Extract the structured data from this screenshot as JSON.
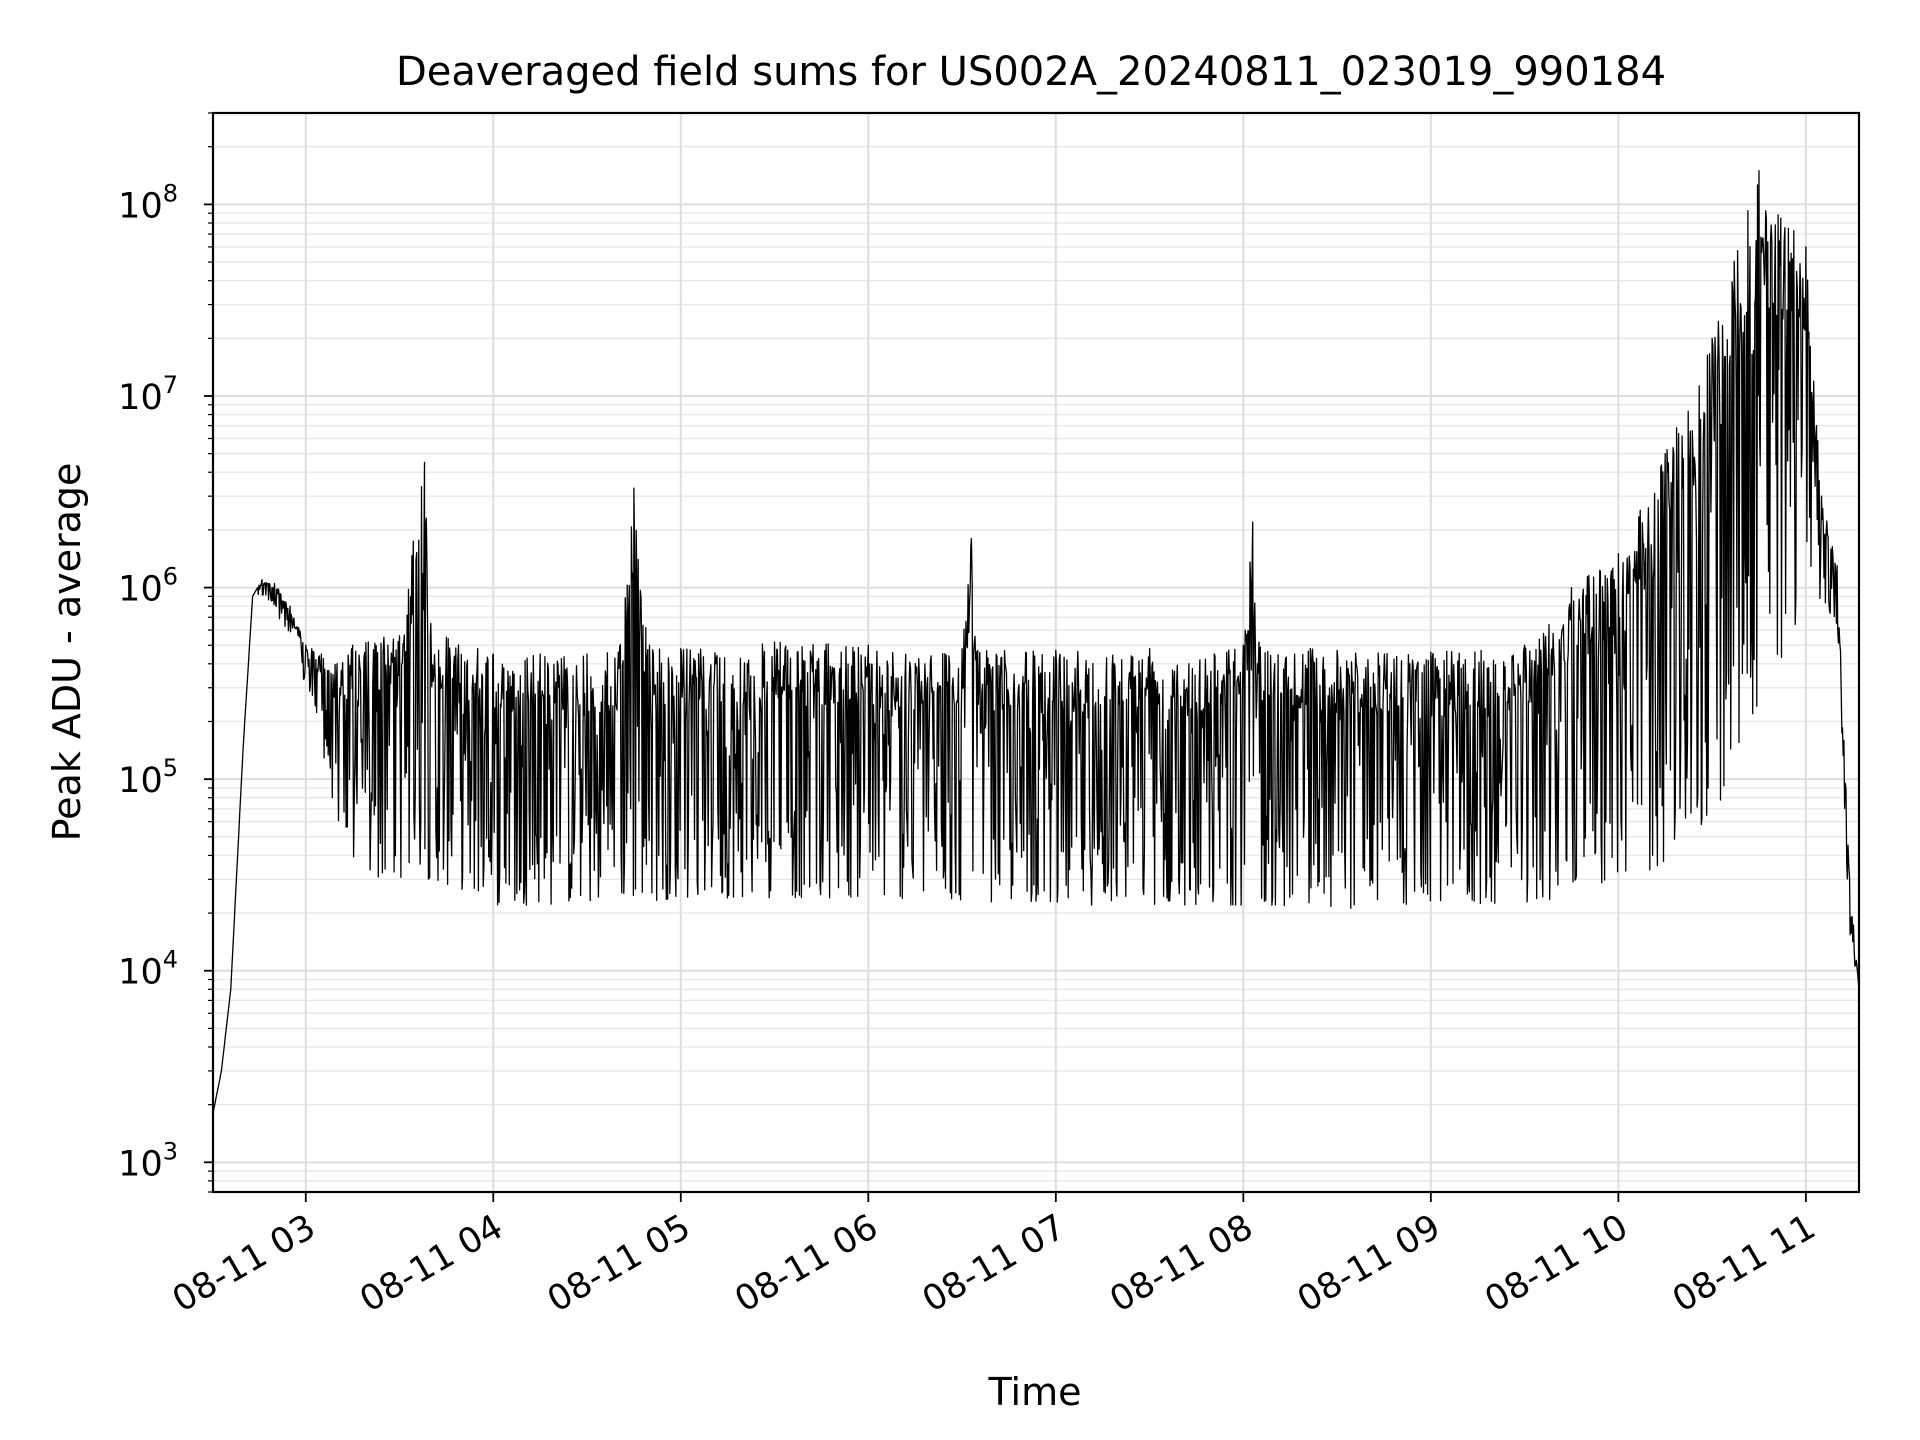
{
  "chart_data": {
    "type": "line",
    "title": "Deaveraged field sums for US002A_20240811_023019_990184",
    "xlabel": "Time",
    "ylabel": "Peak ADU - average",
    "x_scale": "time",
    "y_scale": "log",
    "x_range": [
      "2024-08-11 02:30:19",
      "2024-08-11 11:17:00"
    ],
    "ylim": [
      700,
      300000000
    ],
    "grid": true,
    "x_tick_labels": [
      "08-11 03",
      "08-11 04",
      "08-11 05",
      "08-11 06",
      "08-11 07",
      "08-11 08",
      "08-11 09",
      "08-11 10",
      "08-11 11"
    ],
    "y_tick_labels": [
      {
        "base": "10",
        "exp": "3"
      },
      {
        "base": "10",
        "exp": "4"
      },
      {
        "base": "10",
        "exp": "5"
      },
      {
        "base": "10",
        "exp": "6"
      },
      {
        "base": "10",
        "exp": "7"
      },
      {
        "base": "10",
        "exp": "8"
      }
    ],
    "line_color": "#000000",
    "series": [
      {
        "x": [
          "2024-08-11 02:30:19",
          "2024-08-11 02:33:00",
          "2024-08-11 02:36:00",
          "2024-08-11 02:40:00",
          "2024-08-11 02:43:00",
          "2024-08-11 02:46:00",
          "2024-08-11 02:50:00",
          "2024-08-11 02:55:00",
          "2024-08-11 03:00:00",
          "2024-08-11 03:05:00",
          "2024-08-11 03:10:00",
          "2024-08-11 03:15:00",
          "2024-08-11 03:20:00",
          "2024-08-11 03:25:00",
          "2024-08-11 03:30:00",
          "2024-08-11 03:38:00",
          "2024-08-11 03:40:00",
          "2024-08-11 03:45:00",
          "2024-08-11 03:55:00",
          "2024-08-11 04:00:00",
          "2024-08-11 04:15:00",
          "2024-08-11 04:30:00",
          "2024-08-11 04:40:00",
          "2024-08-11 04:45:00",
          "2024-08-11 04:50:00",
          "2024-08-11 05:00:00",
          "2024-08-11 05:30:00",
          "2024-08-11 06:00:00",
          "2024-08-11 06:30:00",
          "2024-08-11 06:33:00",
          "2024-08-11 06:35:00",
          "2024-08-11 07:00:00",
          "2024-08-11 07:30:00",
          "2024-08-11 08:00:00",
          "2024-08-11 08:03:00",
          "2024-08-11 08:05:00",
          "2024-08-11 08:30:00",
          "2024-08-11 09:00:00",
          "2024-08-11 09:30:00",
          "2024-08-11 09:45:00",
          "2024-08-11 10:00:00",
          "2024-08-11 10:15:00",
          "2024-08-11 10:30:00",
          "2024-08-11 10:45:00",
          "2024-08-11 11:00:00",
          "2024-08-11 11:05:00",
          "2024-08-11 11:10:00",
          "2024-08-11 11:14:00",
          "2024-08-11 11:17:00"
        ],
        "high": [
          1800,
          3000,
          8000,
          150000,
          900000,
          1100000,
          1050000,
          800000,
          500000,
          450000,
          400000,
          500000,
          520000,
          550000,
          560000,
          4500000,
          650000,
          550000,
          480000,
          450000,
          450000,
          450000,
          460000,
          3300000,
          500000,
          480000,
          520000,
          500000,
          480000,
          1800000,
          470000,
          470000,
          480000,
          500000,
          2200000,
          520000,
          470000,
          460000,
          500000,
          1000000,
          1500000,
          5000000,
          20000000,
          150000000,
          60000000,
          3000000,
          1300000,
          30000,
          8000
        ],
        "low": [
          1800,
          3000,
          8000,
          150000,
          900000,
          900000,
          800000,
          500000,
          300000,
          150000,
          60000,
          35000,
          28000,
          30000,
          30000,
          30000,
          30000,
          28000,
          25000,
          22000,
          22000,
          22000,
          23000,
          23000,
          23000,
          24000,
          24000,
          24000,
          23000,
          23000,
          23000,
          22000,
          22000,
          22000,
          22000,
          22000,
          21000,
          22000,
          22000,
          25000,
          30000,
          35000,
          60000,
          250000,
          700000,
          900000,
          600000,
          15000,
          8000
        ]
      }
    ]
  }
}
